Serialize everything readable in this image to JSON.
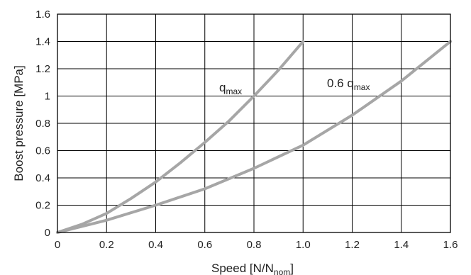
{
  "chart_data": {
    "type": "line",
    "xlabel": "Speed [N/N",
    "xlabel_sub": "nom",
    "xlabel_close": "]",
    "ylabel": "Boost pressure [MPa]",
    "xlim": [
      0,
      1.6
    ],
    "ylim": [
      0,
      1.6
    ],
    "xticks": [
      "0",
      "0.2",
      "0.4",
      "0.6",
      "0.8",
      "1.0",
      "1.2",
      "1.4",
      "1.6"
    ],
    "yticks": [
      "0",
      "0.2",
      "0.4",
      "0.6",
      "0.8",
      "1",
      "1.2",
      "1.4",
      "1.6"
    ],
    "grid": true,
    "line_color": "#a6a6a6",
    "series": [
      {
        "label_main": "q",
        "label_sub": "max",
        "x": [
          0,
          0.1,
          0.2,
          0.3,
          0.4,
          0.5,
          0.6,
          0.7,
          0.8,
          0.9,
          1.0
        ],
        "y": [
          0,
          0.06,
          0.14,
          0.25,
          0.37,
          0.51,
          0.66,
          0.82,
          1.0,
          1.19,
          1.4
        ]
      },
      {
        "label_main": "0.6 q",
        "label_sub": "max",
        "x": [
          0,
          0.2,
          0.4,
          0.6,
          0.8,
          1.0,
          1.2,
          1.4,
          1.6
        ],
        "y": [
          0,
          0.09,
          0.2,
          0.32,
          0.47,
          0.64,
          0.86,
          1.11,
          1.4
        ]
      }
    ]
  }
}
